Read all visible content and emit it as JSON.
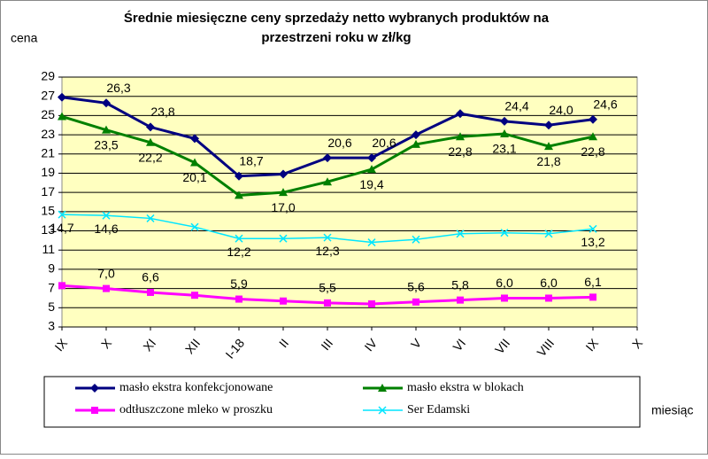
{
  "chart_data": {
    "type": "line",
    "title": [
      "Średnie miesięczne ceny sprzedaży netto  wybranych produktów na",
      "przestrzeni roku w zł/kg"
    ],
    "y_label": "cena",
    "x_label": "miesiąc",
    "categories": [
      "IX",
      "X",
      "XI",
      "XII",
      "I-18",
      "II",
      "III",
      "IV",
      "V",
      "VI",
      "VII",
      "VIII",
      "IX",
      "X"
    ],
    "ylim": [
      3,
      29
    ],
    "yticks": [
      3,
      5,
      7,
      9,
      11,
      13,
      15,
      17,
      19,
      21,
      23,
      25,
      27,
      29
    ],
    "grid": true,
    "series": [
      {
        "name": "masło ekstra konfekcjonowane",
        "color": "#000080",
        "marker": "diamond",
        "values": [
          26.9,
          26.3,
          23.8,
          22.6,
          18.7,
          18.9,
          20.6,
          20.6,
          23.0,
          25.2,
          24.4,
          24.0,
          24.6,
          null
        ],
        "value_labels": [
          null,
          "26,3",
          "23,8",
          null,
          "18,7",
          null,
          "20,6",
          "20,6",
          null,
          null,
          "24,4",
          "24,0",
          "24,6",
          null
        ]
      },
      {
        "name": "masło ekstra w blokach",
        "color": "#008000",
        "marker": "triangle",
        "values": [
          24.9,
          23.5,
          22.2,
          20.1,
          16.7,
          17.0,
          18.1,
          19.4,
          22.0,
          22.8,
          23.1,
          21.8,
          22.8,
          null
        ],
        "value_labels": [
          null,
          "23,5",
          "22,2",
          "20,1",
          null,
          "17,0",
          null,
          "19,4",
          null,
          "22,8",
          "23,1",
          "21,8",
          "22,8",
          null
        ]
      },
      {
        "name": "odtłuszczone mleko w proszku",
        "color": "#ff00ff",
        "marker": "square",
        "values": [
          7.3,
          7.0,
          6.6,
          6.3,
          5.9,
          5.7,
          5.5,
          5.4,
          5.6,
          5.8,
          6.0,
          6.0,
          6.1,
          null
        ],
        "value_labels": [
          null,
          "7,0",
          "6,6",
          null,
          "5,9",
          null,
          "5,5",
          null,
          "5,6",
          "5,8",
          "6,0",
          "6,0",
          "6,1",
          null
        ]
      },
      {
        "name": "Ser Edamski",
        "color": "#00e5ff",
        "marker": "x",
        "values": [
          14.7,
          14.6,
          14.3,
          13.4,
          12.2,
          12.2,
          12.3,
          11.8,
          12.1,
          12.7,
          12.8,
          12.7,
          13.2,
          null
        ],
        "value_labels": [
          "14,7",
          "14,6",
          null,
          null,
          "12,2",
          null,
          "12,3",
          null,
          null,
          null,
          null,
          null,
          "13,2",
          null
        ]
      }
    ]
  }
}
